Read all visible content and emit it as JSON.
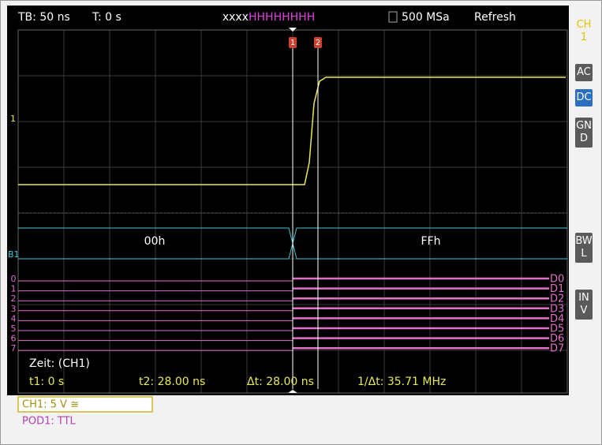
{
  "header": {
    "timebase": "TB: 50 ns",
    "trigger_time": "T: 0 s",
    "pattern_prefix": "xxxx",
    "pattern_bits": "HHHHHHHH",
    "sample_rate": "500 MSa",
    "mode": "Refresh"
  },
  "side_buttons": {
    "channel": "CH1",
    "ac": "AC",
    "dc": "DC",
    "gnd": "GND",
    "bwl": "BWL",
    "inv": "INV"
  },
  "cursor_markers": [
    "1",
    "2"
  ],
  "trigger_level_label": "1",
  "bus": {
    "name": "B1",
    "before": "00h",
    "after": "FFh"
  },
  "digital_left": [
    "0",
    "1",
    "2",
    "3",
    "4",
    "5",
    "6",
    "7"
  ],
  "digital_right": [
    "D0",
    "D1",
    "D2",
    "D3",
    "D4",
    "D5",
    "D6",
    "D7"
  ],
  "measurements": {
    "title": "Zeit: (CH1)",
    "t1": "t1: 0 s",
    "t2": "t2: 28.00 ns",
    "dt": "Δt: 28.00 ns",
    "freq": "1/Δt: 35.71 MHz"
  },
  "status": {
    "channel": "CH1: 5 V ≅",
    "pod": "POD1: TTL"
  }
}
